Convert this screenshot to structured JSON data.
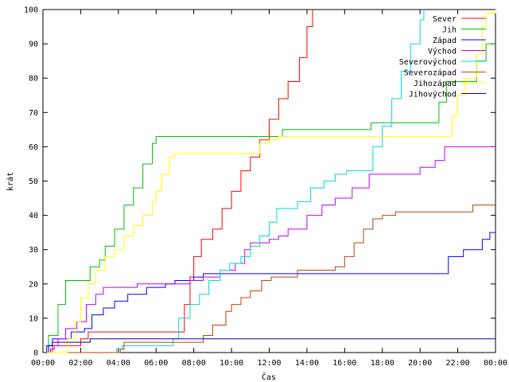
{
  "chart_data": {
    "type": "line",
    "xlabel": "Čas",
    "ylabel": "krát",
    "xlim": [
      0,
      24
    ],
    "ylim": [
      0,
      100
    ],
    "x_ticks": [
      0,
      2,
      4,
      6,
      8,
      10,
      12,
      14,
      16,
      18,
      20,
      22,
      24
    ],
    "x_tick_labels": [
      "00:00",
      "02:00",
      "04:00",
      "06:00",
      "08:00",
      "10:00",
      "12:00",
      "14:00",
      "16:00",
      "18:00",
      "20:00",
      "22:00",
      "00:00"
    ],
    "y_ticks": [
      0,
      10,
      20,
      30,
      40,
      50,
      60,
      70,
      80,
      90,
      100
    ],
    "grid": false,
    "legend_position": "top-right",
    "series": [
      {
        "name": "Sever",
        "color": "#ff0000",
        "points": [
          [
            0,
            0
          ],
          [
            0.4,
            1
          ],
          [
            0.6,
            2
          ],
          [
            1.8,
            2
          ],
          [
            2.0,
            4
          ],
          [
            2.4,
            6
          ],
          [
            7.3,
            6
          ],
          [
            7.5,
            14
          ],
          [
            7.8,
            22
          ],
          [
            8.0,
            28
          ],
          [
            8.4,
            33
          ],
          [
            9.0,
            36
          ],
          [
            9.5,
            42
          ],
          [
            10.0,
            47
          ],
          [
            10.5,
            53
          ],
          [
            11.0,
            57
          ],
          [
            11.5,
            62
          ],
          [
            12.0,
            68
          ],
          [
            12.5,
            74
          ],
          [
            13.0,
            79
          ],
          [
            13.6,
            86
          ],
          [
            14.0,
            95
          ],
          [
            14.3,
            100
          ]
        ]
      },
      {
        "name": "Jih",
        "color": "#00c000",
        "points": [
          [
            0,
            0
          ],
          [
            0.3,
            5
          ],
          [
            0.8,
            14
          ],
          [
            1.2,
            21
          ],
          [
            1.9,
            21
          ],
          [
            2.5,
            25
          ],
          [
            3.0,
            27
          ],
          [
            3.3,
            31
          ],
          [
            3.8,
            36
          ],
          [
            4.3,
            43
          ],
          [
            4.8,
            48
          ],
          [
            5.3,
            55
          ],
          [
            5.8,
            61
          ],
          [
            6.0,
            63
          ],
          [
            12.5,
            63
          ],
          [
            12.7,
            65
          ],
          [
            17.2,
            65
          ],
          [
            17.4,
            67
          ],
          [
            20.8,
            67
          ],
          [
            21.0,
            73
          ],
          [
            21.4,
            79
          ],
          [
            22.5,
            79
          ],
          [
            23.0,
            85
          ],
          [
            23.5,
            90
          ],
          [
            24,
            90
          ]
        ]
      },
      {
        "name": "Západ",
        "color": "#0000ff",
        "points": [
          [
            0,
            0
          ],
          [
            0.3,
            2
          ],
          [
            0.5,
            4
          ],
          [
            1.0,
            4
          ],
          [
            1.5,
            6
          ],
          [
            2.2,
            7
          ],
          [
            2.6,
            11
          ],
          [
            3.2,
            13
          ],
          [
            3.8,
            15
          ],
          [
            4.5,
            17
          ],
          [
            5.5,
            19
          ],
          [
            6.5,
            20
          ],
          [
            7.0,
            21
          ],
          [
            8.0,
            22
          ],
          [
            8.5,
            23
          ],
          [
            21.0,
            23
          ],
          [
            21.5,
            28
          ],
          [
            22.3,
            30
          ],
          [
            23.3,
            33
          ],
          [
            23.7,
            35
          ],
          [
            24,
            35
          ]
        ]
      },
      {
        "name": "Východ",
        "color": "#c000ff",
        "points": [
          [
            0,
            0
          ],
          [
            0.5,
            2
          ],
          [
            0.8,
            4
          ],
          [
            1.2,
            7
          ],
          [
            1.8,
            9
          ],
          [
            2.3,
            14
          ],
          [
            2.8,
            17
          ],
          [
            3.2,
            19
          ],
          [
            4.8,
            19
          ],
          [
            5.0,
            20
          ],
          [
            7.5,
            20
          ],
          [
            7.8,
            21
          ],
          [
            8.5,
            22
          ],
          [
            9.4,
            24
          ],
          [
            10.2,
            26
          ],
          [
            10.7,
            30
          ],
          [
            11.0,
            32
          ],
          [
            12.0,
            33
          ],
          [
            12.5,
            34
          ],
          [
            13.0,
            36
          ],
          [
            14.0,
            40
          ],
          [
            14.8,
            43
          ],
          [
            15.5,
            45
          ],
          [
            16.4,
            48
          ],
          [
            17.3,
            52
          ],
          [
            19.5,
            52
          ],
          [
            20.0,
            54
          ],
          [
            20.8,
            56
          ],
          [
            21.3,
            60
          ],
          [
            24,
            60
          ]
        ]
      },
      {
        "name": "Severovýchod",
        "color": "#00d8d8",
        "points": [
          [
            0,
            0
          ],
          [
            3.5,
            0
          ],
          [
            3.9,
            1
          ],
          [
            4.2,
            2
          ],
          [
            6.6,
            2
          ],
          [
            6.9,
            4
          ],
          [
            7.2,
            10
          ],
          [
            7.8,
            14
          ],
          [
            8.3,
            17
          ],
          [
            8.8,
            21
          ],
          [
            9.4,
            24
          ],
          [
            9.9,
            26
          ],
          [
            10.5,
            28
          ],
          [
            11.0,
            31
          ],
          [
            11.5,
            34
          ],
          [
            12.0,
            38
          ],
          [
            12.4,
            42
          ],
          [
            13.5,
            44
          ],
          [
            14.2,
            48
          ],
          [
            14.9,
            50
          ],
          [
            15.5,
            52
          ],
          [
            16.1,
            53
          ],
          [
            17.0,
            53
          ],
          [
            17.5,
            60
          ],
          [
            18.0,
            66
          ],
          [
            18.5,
            74
          ],
          [
            19.0,
            82
          ],
          [
            19.5,
            90
          ],
          [
            20.0,
            97
          ],
          [
            20.2,
            100
          ]
        ]
      },
      {
        "name": "Severozápad",
        "color": "#c04000",
        "points": [
          [
            0,
            0
          ],
          [
            4.0,
            0
          ],
          [
            4.1,
            1
          ],
          [
            4.3,
            3
          ],
          [
            6.8,
            3
          ],
          [
            8.0,
            3
          ],
          [
            8.5,
            5
          ],
          [
            9.0,
            8
          ],
          [
            9.7,
            12
          ],
          [
            10.0,
            14
          ],
          [
            10.5,
            16
          ],
          [
            11.0,
            18
          ],
          [
            11.6,
            21
          ],
          [
            12.1,
            22
          ],
          [
            13.0,
            22
          ],
          [
            13.5,
            24
          ],
          [
            14.8,
            24
          ],
          [
            15.5,
            25
          ],
          [
            16.0,
            28
          ],
          [
            16.5,
            32
          ],
          [
            17.0,
            36
          ],
          [
            17.5,
            39
          ],
          [
            18.0,
            40
          ],
          [
            18.7,
            41
          ],
          [
            22.5,
            41
          ],
          [
            22.8,
            43
          ],
          [
            24,
            43
          ]
        ]
      },
      {
        "name": "Jihozápad",
        "color": "#ffff00",
        "points": [
          [
            0,
            0
          ],
          [
            1.0,
            0
          ],
          [
            1.3,
            4
          ],
          [
            1.7,
            9
          ],
          [
            2.0,
            16
          ],
          [
            2.4,
            20
          ],
          [
            2.8,
            24
          ],
          [
            3.3,
            28
          ],
          [
            3.8,
            30
          ],
          [
            4.3,
            34
          ],
          [
            4.8,
            37
          ],
          [
            5.3,
            40
          ],
          [
            5.8,
            44
          ],
          [
            6.0,
            47
          ],
          [
            6.3,
            52
          ],
          [
            6.7,
            57
          ],
          [
            7.0,
            58
          ],
          [
            10.5,
            58
          ],
          [
            11.5,
            61
          ],
          [
            12.0,
            62
          ],
          [
            12.5,
            63
          ],
          [
            21.3,
            63
          ],
          [
            21.7,
            69
          ],
          [
            22.0,
            75
          ],
          [
            22.4,
            80
          ],
          [
            23.0,
            87
          ],
          [
            23.3,
            95
          ],
          [
            23.5,
            99
          ],
          [
            24,
            100
          ]
        ]
      },
      {
        "name": "Jihovýchod",
        "color": "#0000a0",
        "points": [
          [
            0,
            0
          ],
          [
            0.2,
            2
          ],
          [
            0.5,
            3
          ],
          [
            2.0,
            3
          ],
          [
            2.5,
            4
          ],
          [
            24,
            4
          ]
        ]
      }
    ]
  }
}
